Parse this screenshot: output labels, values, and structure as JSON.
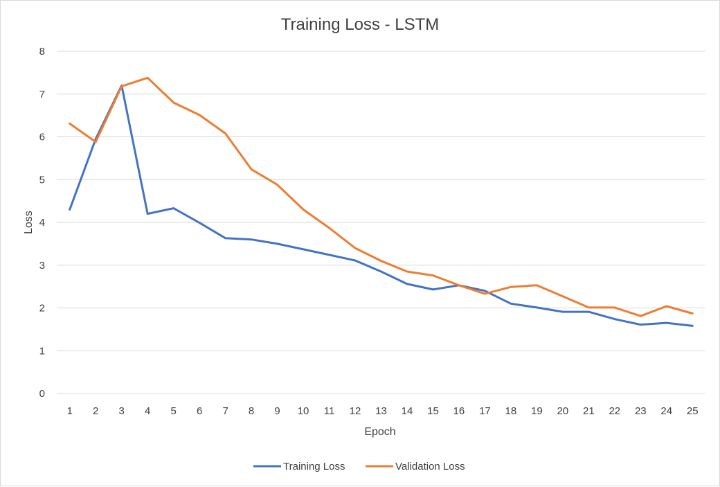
{
  "chart_data": {
    "type": "line",
    "title": "Training Loss - LSTM",
    "xlabel": "Epoch",
    "ylabel": "Loss",
    "ylim": [
      0,
      8
    ],
    "yticks": [
      "0",
      "1",
      "2",
      "3",
      "4",
      "5",
      "6",
      "7",
      "8"
    ],
    "grid": true,
    "legend_position": "bottom",
    "categories": [
      "1",
      "2",
      "3",
      "4",
      "5",
      "6",
      "7",
      "8",
      "9",
      "10",
      "11",
      "12",
      "13",
      "14",
      "15",
      "16",
      "17",
      "18",
      "19",
      "20",
      "21",
      "22",
      "23",
      "24",
      "25"
    ],
    "series": [
      {
        "name": "Training Loss",
        "color": "#4472c4",
        "values": [
          4.3,
          5.95,
          7.2,
          4.2,
          4.33,
          3.99,
          3.63,
          3.6,
          3.5,
          3.37,
          3.24,
          3.11,
          2.85,
          2.56,
          2.43,
          2.53,
          2.4,
          2.1,
          2.01,
          1.91,
          1.91,
          1.74,
          1.61,
          1.65,
          1.58
        ]
      },
      {
        "name": "Validation Loss",
        "color": "#ed7d31",
        "values": [
          6.31,
          5.88,
          7.18,
          7.38,
          6.8,
          6.51,
          6.08,
          5.24,
          4.88,
          4.3,
          3.87,
          3.4,
          3.1,
          2.85,
          2.76,
          2.53,
          2.33,
          2.49,
          2.53,
          2.27,
          2.01,
          2.01,
          1.81,
          2.04,
          1.87
        ]
      }
    ]
  }
}
